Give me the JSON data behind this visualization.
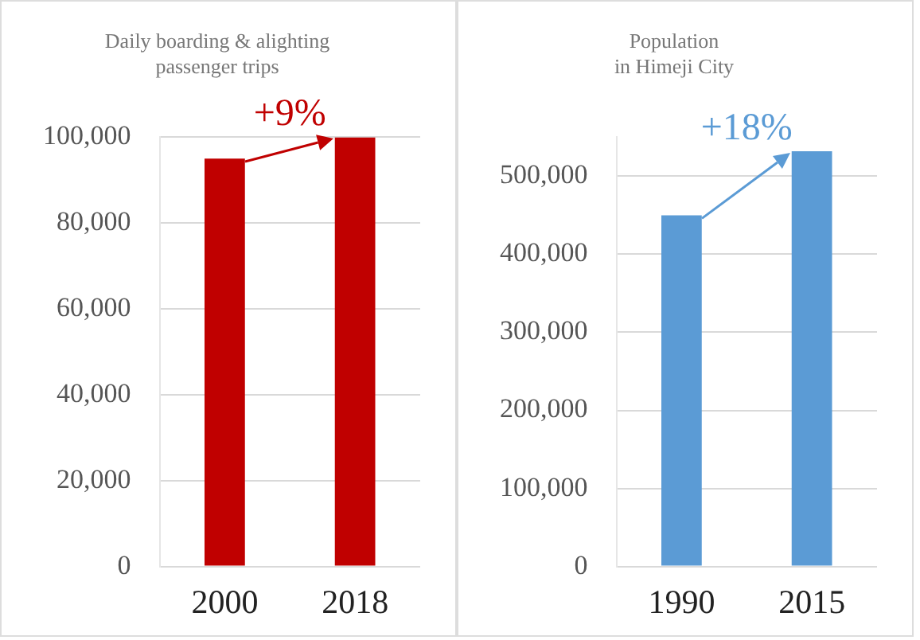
{
  "chart_data": [
    {
      "type": "bar",
      "title": "Daily boarding & alighting\npassenger trips",
      "categories": [
        "2000",
        "2018"
      ],
      "values": [
        95000,
        100000
      ],
      "color": "#c00000",
      "ylim": [
        0,
        100000
      ],
      "yticks": [
        0,
        {
          "value": 20000,
          "label": "20,000"
        },
        {
          "value": 40000,
          "label": "40,000"
        },
        {
          "value": 60000,
          "label": "60,000"
        },
        {
          "value": 80000,
          "label": "80,000"
        },
        {
          "value": 100000,
          "label": "100,000"
        }
      ],
      "grid": "y",
      "legend": false,
      "annotations": [
        {
          "text": "+9%",
          "x": "2018",
          "y": 100000
        }
      ]
    },
    {
      "type": "bar",
      "title": "Population\nin Himeji City",
      "categories": [
        "1990",
        "2015"
      ],
      "values": [
        450000,
        532000
      ],
      "color": "#5b9bd5",
      "ylim": [
        0,
        550000
      ],
      "yticks": [
        0,
        {
          "value": 100000,
          "label": "100,000"
        },
        {
          "value": 200000,
          "label": "200,000"
        },
        {
          "value": 300000,
          "label": "300,000"
        },
        {
          "value": 400000,
          "label": "400,000"
        },
        {
          "value": 500000,
          "label": "500,000"
        }
      ],
      "grid": "y",
      "legend": false,
      "annotations": [
        {
          "text": "+18%",
          "x": "2015",
          "y": 532000
        }
      ]
    }
  ]
}
